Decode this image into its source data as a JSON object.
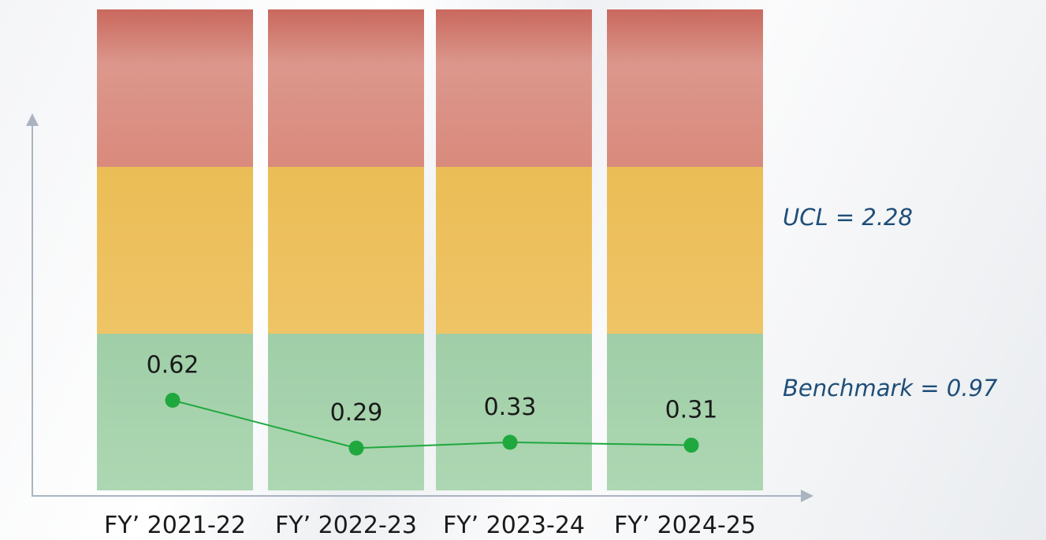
{
  "chart_data": {
    "type": "line",
    "categories": [
      "FY’ 2021-22",
      "FY’ 2022-23",
      "FY’ 2023-24",
      "FY’ 2024-25"
    ],
    "values": [
      0.62,
      0.29,
      0.33,
      0.31
    ],
    "data_labels": [
      "0.62",
      "0.29",
      "0.33",
      "0.31"
    ],
    "title": "",
    "xlabel": "",
    "ylabel": "",
    "annotations": {
      "ucl": "UCL = 2.28",
      "benchmark": "Benchmark = 0.97"
    },
    "zones": [
      "red",
      "amber",
      "green"
    ],
    "colors": {
      "line": "#1fa83e",
      "marker": "#1fa83e",
      "axis": "#aab4c0",
      "annotation_text": "#1f4e79",
      "zone_red_top": "#cd6a5e",
      "zone_red_bottom": "#dd9a8e",
      "zone_amber": "#ecc062",
      "zone_green": "#a6d3ad"
    },
    "grid": false,
    "legend": "none"
  }
}
